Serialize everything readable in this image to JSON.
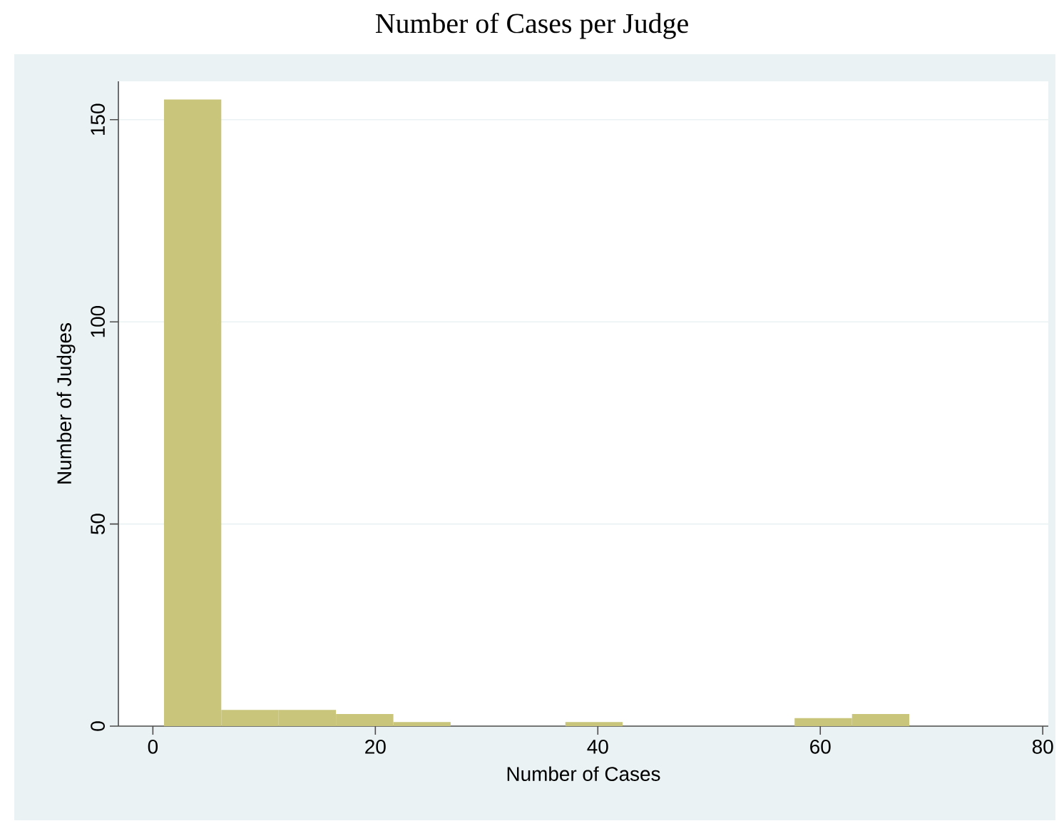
{
  "chart_data": {
    "type": "histogram",
    "title": "Number of Cases per Judge",
    "xlabel": "Number of Cases",
    "ylabel": "Number of Judges",
    "bins": [
      1,
      6.15,
      11.31,
      16.46,
      21.62,
      26.77,
      31.92,
      37.08,
      42.23,
      47.38,
      52.54,
      57.69,
      62.85,
      68
    ],
    "values": [
      155,
      4,
      4,
      3,
      1,
      0,
      0,
      1,
      0,
      0,
      0,
      2,
      3
    ],
    "color": "#c9c67c",
    "xlim": [
      -3.1,
      80.5
    ],
    "ylim": [
      0,
      159.5
    ],
    "xticks": [
      0,
      20,
      40,
      60,
      80
    ],
    "yticks": [
      0,
      50,
      100,
      150
    ],
    "grid": "y"
  }
}
